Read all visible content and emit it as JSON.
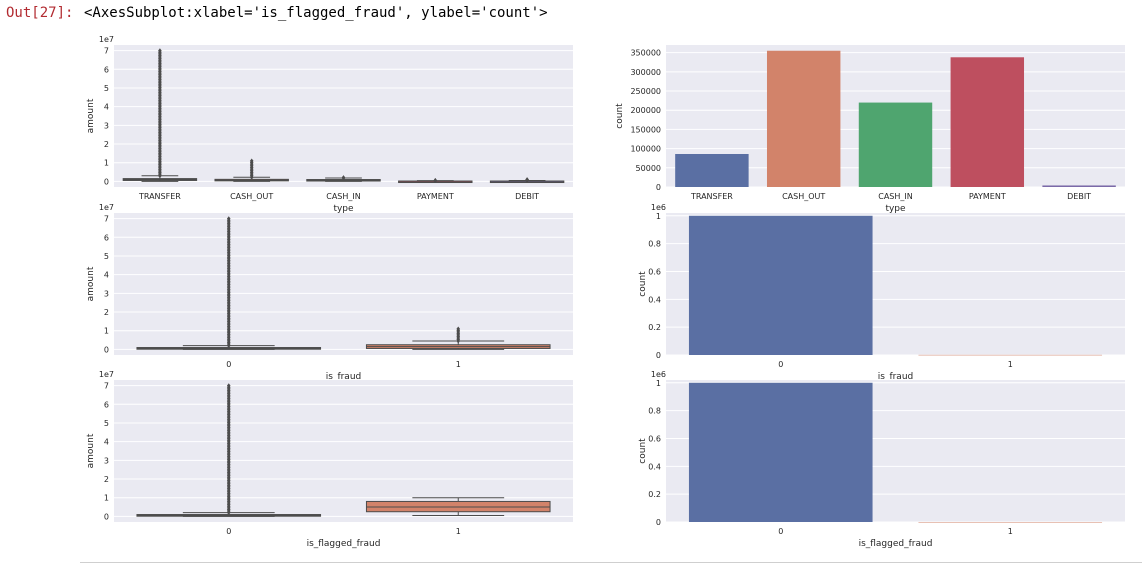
{
  "cell": {
    "prompt": "Out[27]:",
    "output_text": "<AxesSubplot:xlabel='is_flagged_fraud', ylabel='count'>"
  },
  "colors": {
    "panel_bg": "#eaeaf2",
    "grid": "#ffffff",
    "tick_text": "#262626",
    "box_dark": "#4c4c4c",
    "palette": [
      "#5a6fa3",
      "#d2836a",
      "#4fa56f",
      "#be4f5f",
      "#7b6aa8"
    ]
  },
  "chart_data": [
    {
      "id": "box-type",
      "type": "box",
      "x_label": "type",
      "y_label": "amount",
      "y_multiplier": "1e7",
      "ylim": [
        -0.3,
        7.3
      ],
      "y_ticks": [
        0,
        1,
        2,
        3,
        4,
        5,
        6,
        7
      ],
      "categories": [
        "TRANSFER",
        "CASH_OUT",
        "CASH_IN",
        "PAYMENT",
        "DEBIT"
      ],
      "boxes": [
        {
          "q1": 0.05,
          "median": 0.1,
          "q3": 0.15,
          "whisker_low": 0.0,
          "whisker_high": 0.3,
          "outliers_max": 7.0
        },
        {
          "q1": 0.03,
          "median": 0.07,
          "q3": 0.11,
          "whisker_low": 0.0,
          "whisker_high": 0.22,
          "outliers_max": 1.1
        },
        {
          "q1": 0.02,
          "median": 0.05,
          "q3": 0.1,
          "whisker_low": 0.0,
          "whisker_high": 0.18,
          "outliers_max": 0.2
        },
        {
          "q1": 0.0,
          "median": 0.01,
          "q3": 0.02,
          "whisker_low": 0.0,
          "whisker_high": 0.04,
          "outliers_max": 0.05
        },
        {
          "q1": 0.0,
          "median": 0.01,
          "q3": 0.02,
          "whisker_low": 0.0,
          "whisker_high": 0.05,
          "outliers_max": 0.1
        }
      ]
    },
    {
      "id": "count-type",
      "type": "bar",
      "x_label": "type",
      "y_label": "count",
      "ylim": [
        0,
        370000
      ],
      "y_ticks": [
        0,
        50000,
        100000,
        150000,
        200000,
        250000,
        300000,
        350000
      ],
      "categories": [
        "TRANSFER",
        "CASH_OUT",
        "CASH_IN",
        "PAYMENT",
        "DEBIT"
      ],
      "values": [
        86000,
        355000,
        220000,
        338000,
        4000
      ]
    },
    {
      "id": "box-fraud",
      "type": "box",
      "x_label": "is_fraud",
      "y_label": "amount",
      "y_multiplier": "1e7",
      "ylim": [
        -0.3,
        7.3
      ],
      "y_ticks": [
        0,
        1,
        2,
        3,
        4,
        5,
        6,
        7
      ],
      "categories": [
        "0",
        "1"
      ],
      "boxes": [
        {
          "q1": 0.01,
          "median": 0.05,
          "q3": 0.1,
          "whisker_low": 0.0,
          "whisker_high": 0.2,
          "outliers_max": 7.0
        },
        {
          "q1": 0.05,
          "median": 0.15,
          "q3": 0.25,
          "whisker_low": 0.0,
          "whisker_high": 0.45,
          "outliers_max": 1.1
        }
      ]
    },
    {
      "id": "count-fraud",
      "type": "bar",
      "x_label": "is_fraud",
      "y_label": "count",
      "y_multiplier": "1e6",
      "ylim": [
        0,
        1.02
      ],
      "y_ticks": [
        0.0,
        0.2,
        0.4,
        0.6,
        0.8,
        1.0
      ],
      "categories": [
        "0",
        "1"
      ],
      "values": [
        1.0,
        0.001
      ]
    },
    {
      "id": "box-flagged",
      "type": "box",
      "x_label": "is_flagged_fraud",
      "y_label": "amount",
      "y_multiplier": "1e7",
      "ylim": [
        -0.3,
        7.3
      ],
      "y_ticks": [
        0,
        1,
        2,
        3,
        4,
        5,
        6,
        7
      ],
      "categories": [
        "0",
        "1"
      ],
      "boxes": [
        {
          "q1": 0.01,
          "median": 0.05,
          "q3": 0.1,
          "whisker_low": 0.0,
          "whisker_high": 0.2,
          "outliers_max": 7.0
        },
        {
          "q1": 0.25,
          "median": 0.5,
          "q3": 0.8,
          "whisker_low": 0.05,
          "whisker_high": 1.0,
          "outliers_max": null
        }
      ]
    },
    {
      "id": "count-flagged",
      "type": "bar",
      "x_label": "is_flagged_fraud",
      "y_label": "count",
      "y_multiplier": "1e6",
      "ylim": [
        0,
        1.02
      ],
      "y_ticks": [
        0.0,
        0.2,
        0.4,
        0.6,
        0.8,
        1.0
      ],
      "categories": [
        "0",
        "1"
      ],
      "values": [
        1.0,
        0.0
      ]
    }
  ]
}
